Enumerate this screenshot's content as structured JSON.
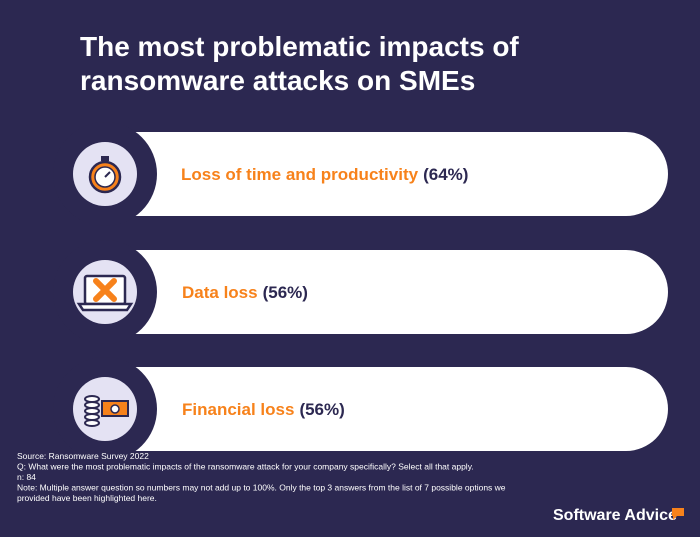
{
  "header": {
    "title_lines": [
      "The most problematic impacts of",
      "ransomware attacks on SMEs"
    ]
  },
  "items": [
    {
      "label": "Loss of time and productivity",
      "value_label": "(64%)"
    },
    {
      "label": "Data loss",
      "value_label": "(56%)"
    },
    {
      "label": "Financial loss",
      "value_label": "(56%)"
    }
  ],
  "footer": {
    "lines": [
      "Source: Ransomware Survey 2022",
      "Q: What were the most problematic impacts of the ransomware attack for your company specifically? Select all that apply.",
      "n: 84",
      "Note: Multiple answer question so numbers may not add up to 100%. Only the top 3 answers from the list of 7 possible options we",
      "provided have been highlighted here."
    ],
    "logo": "Software Advice"
  }
}
